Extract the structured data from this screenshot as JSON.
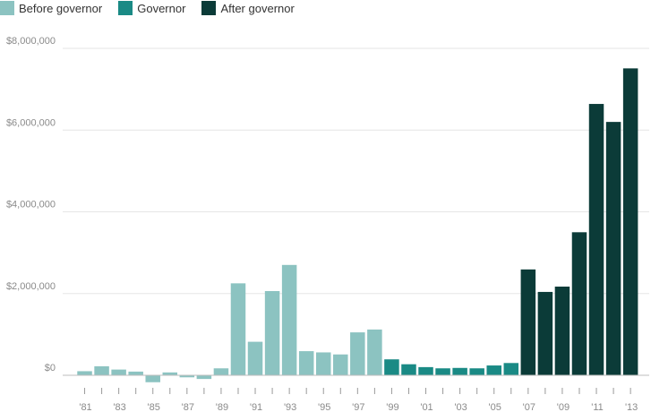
{
  "colors": {
    "before": "#8cc3c1",
    "governor": "#1a8a85",
    "after": "#0b3b38",
    "grid": "#e6e6e6",
    "axis": "#9a9a9a"
  },
  "chart_data": {
    "type": "bar",
    "legend": [
      {
        "key": "before",
        "label": "Before governor"
      },
      {
        "key": "governor",
        "label": "Governor"
      },
      {
        "key": "after",
        "label": "After governor"
      }
    ],
    "legend_position": "top-left",
    "grid": true,
    "ylim": [
      -200000,
      8500000
    ],
    "yticks": [
      {
        "value": 0,
        "label": "$0"
      },
      {
        "value": 2000000,
        "label": "$2,000,000"
      },
      {
        "value": 4000000,
        "label": "$4,000,000"
      },
      {
        "value": 6000000,
        "label": "$6,000,000"
      },
      {
        "value": 8000000,
        "label": "$8,000,000"
      }
    ],
    "categories": [
      "1981",
      "1982",
      "1983",
      "1984",
      "1985",
      "1986",
      "1987",
      "1988",
      "1989",
      "1990",
      "1991",
      "1992",
      "1993",
      "1994",
      "1995",
      "1996",
      "1997",
      "1998",
      "1999",
      "2000",
      "2001",
      "2002",
      "2003",
      "2004",
      "2005",
      "2006",
      "2007",
      "2008",
      "2009",
      "2010",
      "2011",
      "2012",
      "2013"
    ],
    "tick_labels": [
      "'81",
      "",
      "'83",
      "",
      "'85",
      "",
      "'87",
      "",
      "'89",
      "",
      "'91",
      "",
      "'93",
      "",
      "'95",
      "",
      "'97",
      "",
      "'99",
      "",
      "'01",
      "",
      "'03",
      "",
      "'05",
      "",
      "'07",
      "",
      "'09",
      "",
      "'11",
      "",
      "'13"
    ],
    "values": [
      100000,
      220000,
      140000,
      90000,
      -170000,
      70000,
      -50000,
      -90000,
      170000,
      2250000,
      820000,
      2060000,
      2700000,
      590000,
      560000,
      510000,
      1050000,
      1120000,
      390000,
      270000,
      200000,
      170000,
      180000,
      170000,
      240000,
      300000,
      2590000,
      2040000,
      2170000,
      3500000,
      6640000,
      6200000,
      7510000
    ],
    "groups": [
      "before",
      "before",
      "before",
      "before",
      "before",
      "before",
      "before",
      "before",
      "before",
      "before",
      "before",
      "before",
      "before",
      "before",
      "before",
      "before",
      "before",
      "before",
      "governor",
      "governor",
      "governor",
      "governor",
      "governor",
      "governor",
      "governor",
      "governor",
      "after",
      "after",
      "after",
      "after",
      "after",
      "after",
      "after"
    ]
  }
}
